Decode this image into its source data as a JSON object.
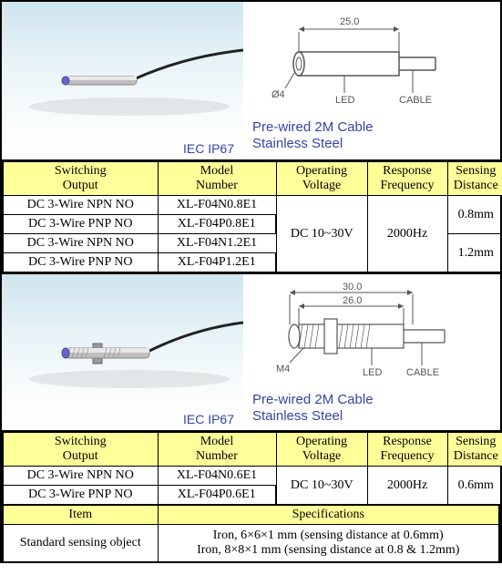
{
  "block1": {
    "iec": "IEC IP67",
    "diag_dim_len": "25.0",
    "diag_diam": "Ø4",
    "diag_led": "LED",
    "diag_cable": "CABLE",
    "caption1": "Pre-wired 2M Cable",
    "caption2": "Stainless Steel",
    "headers": [
      "Switching Output",
      "Model Number",
      "Operating Voltage",
      "Response Frequency",
      "Sensing Distance"
    ],
    "rows": [
      {
        "switching": "DC 3-Wire NPN NO",
        "model": "XL-F04N0.8E1"
      },
      {
        "switching": "DC 3-Wire PNP NO",
        "model": "XL-F04P0.8E1"
      },
      {
        "switching": "DC 3-Wire NPN NO",
        "model": "XL-F04N1.2E1"
      },
      {
        "switching": "DC 3-Wire PNP NO",
        "model": "XL-F04P1.2E1"
      }
    ],
    "voltage": "DC 10~30V",
    "frequency": "2000Hz",
    "distances": [
      "0.8mm",
      "1.2mm"
    ]
  },
  "block2": {
    "iec": "IEC IP67",
    "diag_dim_outer": "30.0",
    "diag_dim_inner": "26.0",
    "diag_thread": "M4",
    "diag_led": "LED",
    "diag_cable": "CABLE",
    "caption1": "Pre-wired 2M Cable",
    "caption2": "Stainless Steel",
    "headers": [
      "Switching Output",
      "Model Number",
      "Operating Voltage",
      "Response Frequency",
      "Sensing Distance"
    ],
    "rows": [
      {
        "switching": "DC 3-Wire NPN NO",
        "model": "XL-F04N0.6E1"
      },
      {
        "switching": "DC 3-Wire PNP NO",
        "model": "XL-F04P0.6E1"
      }
    ],
    "voltage": "DC 10~30V",
    "frequency": "2000Hz",
    "distance": "0.6mm"
  },
  "spec_table": {
    "item_header": "Item",
    "spec_header": "Specifications",
    "row_label": "Standard sensing object",
    "spec_line1": "Iron, 6×6×1 mm (sensing distance at 0.6mm)",
    "spec_line2": "Iron, 8×8×1 mm (sensing distance at 0.8 & 1.2mm)"
  },
  "colwidths": {
    "c1": 170,
    "c2": 130,
    "c3": 100,
    "c4": 88,
    "c5": 63
  },
  "colors": {
    "header_bg": "#ffff99",
    "link_blue": "#3843a5"
  }
}
